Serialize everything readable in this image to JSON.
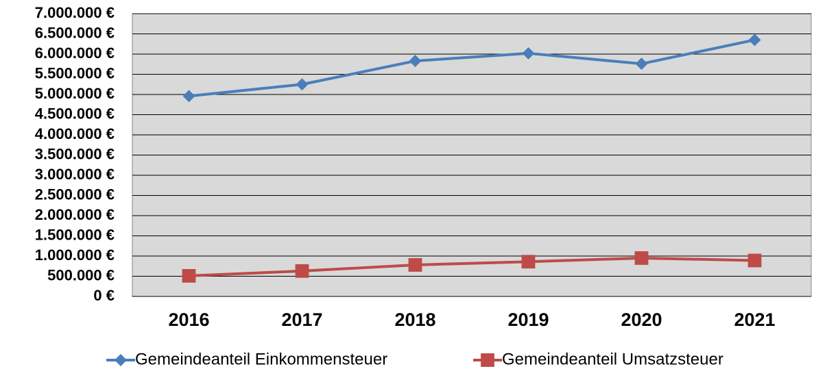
{
  "chart_data": {
    "type": "line",
    "categories": [
      "2016",
      "2017",
      "2018",
      "2019",
      "2020",
      "2021"
    ],
    "series": [
      {
        "name": "Gemeindeanteil Einkommensteuer",
        "color": "#4a7ebb",
        "marker": "diamond",
        "values": [
          4960000,
          5250000,
          5830000,
          6020000,
          5760000,
          6350000
        ]
      },
      {
        "name": "Gemeindeanteil Umsatzsteuer",
        "color": "#be4b48",
        "marker": "square",
        "values": [
          510000,
          630000,
          780000,
          860000,
          950000,
          890000
        ]
      }
    ],
    "ylim": [
      0,
      7000000
    ],
    "yticks": [
      {
        "value": 0,
        "label": "0 €"
      },
      {
        "value": 500000,
        "label": "500.000 €"
      },
      {
        "value": 1000000,
        "label": "1.000.000 €"
      },
      {
        "value": 1500000,
        "label": "1.500.000 €"
      },
      {
        "value": 2000000,
        "label": "2.000.000 €"
      },
      {
        "value": 2500000,
        "label": "2.500.000 €"
      },
      {
        "value": 3000000,
        "label": "3.000.000 €"
      },
      {
        "value": 3500000,
        "label": "3.500.000 €"
      },
      {
        "value": 4000000,
        "label": "4.000.000 €"
      },
      {
        "value": 4500000,
        "label": "4.500.000 €"
      },
      {
        "value": 5000000,
        "label": "5.000.000 €"
      },
      {
        "value": 5500000,
        "label": "5.500.000 €"
      },
      {
        "value": 6000000,
        "label": "6.000.000 €"
      },
      {
        "value": 6500000,
        "label": "6.500.000 €"
      },
      {
        "value": 7000000,
        "label": "7.000.000 €"
      }
    ],
    "grid": true,
    "legend": "bottom",
    "plot_background": "#d9d9d9"
  }
}
